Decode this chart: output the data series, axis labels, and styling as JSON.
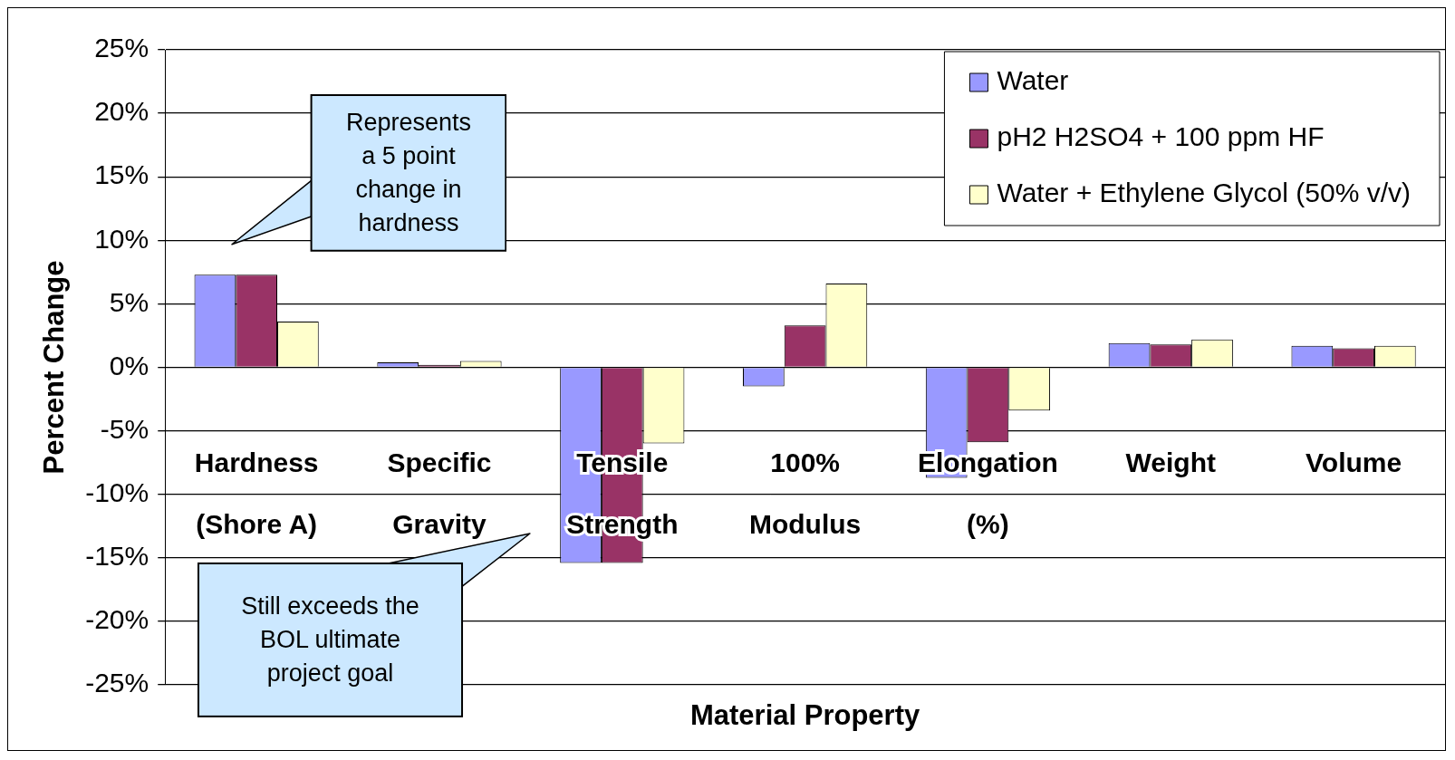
{
  "chart_data": {
    "type": "bar",
    "xlabel": "Material Property",
    "ylabel": "Percent Change",
    "categories": [
      "Hardness (Shore A)",
      "Specific Gravity",
      "Tensile Strength",
      "100% Modulus",
      "Elongation (%)",
      "Weight",
      "Volume"
    ],
    "series": [
      {
        "name": "Water",
        "color": "#9999ff",
        "values": [
          7.3,
          0.4,
          -15.4,
          -1.5,
          -8.7,
          1.9,
          1.7
        ]
      },
      {
        "name": "pH2 H2SO4 + 100 ppm HF",
        "color": "#993366",
        "values": [
          7.3,
          0.2,
          -15.4,
          3.3,
          -5.9,
          1.8,
          1.5
        ]
      },
      {
        "name": "Water + Ethylene Glycol (50% v/v)",
        "color": "#ffffcc",
        "values": [
          3.6,
          0.5,
          -6.0,
          6.6,
          -3.4,
          2.2,
          1.7
        ]
      }
    ],
    "ylim": [
      -25,
      25
    ],
    "yticks": [
      {
        "value": -25,
        "label": "-25%"
      },
      {
        "value": -20,
        "label": "-20%"
      },
      {
        "value": -15,
        "label": "-15%"
      },
      {
        "value": -10,
        "label": "-10%"
      },
      {
        "value": -5,
        "label": "-5%"
      },
      {
        "value": 0,
        "label": "0%"
      },
      {
        "value": 5,
        "label": "5%"
      },
      {
        "value": 10,
        "label": "10%"
      },
      {
        "value": 15,
        "label": "15%"
      },
      {
        "value": 20,
        "label": "20%"
      },
      {
        "value": 25,
        "label": "25%"
      }
    ],
    "grid": "y",
    "legend": "top right",
    "annotations": [
      "Represents a 5 point change in hardness",
      "Still exceeds the BOL ultimate project goal"
    ]
  }
}
